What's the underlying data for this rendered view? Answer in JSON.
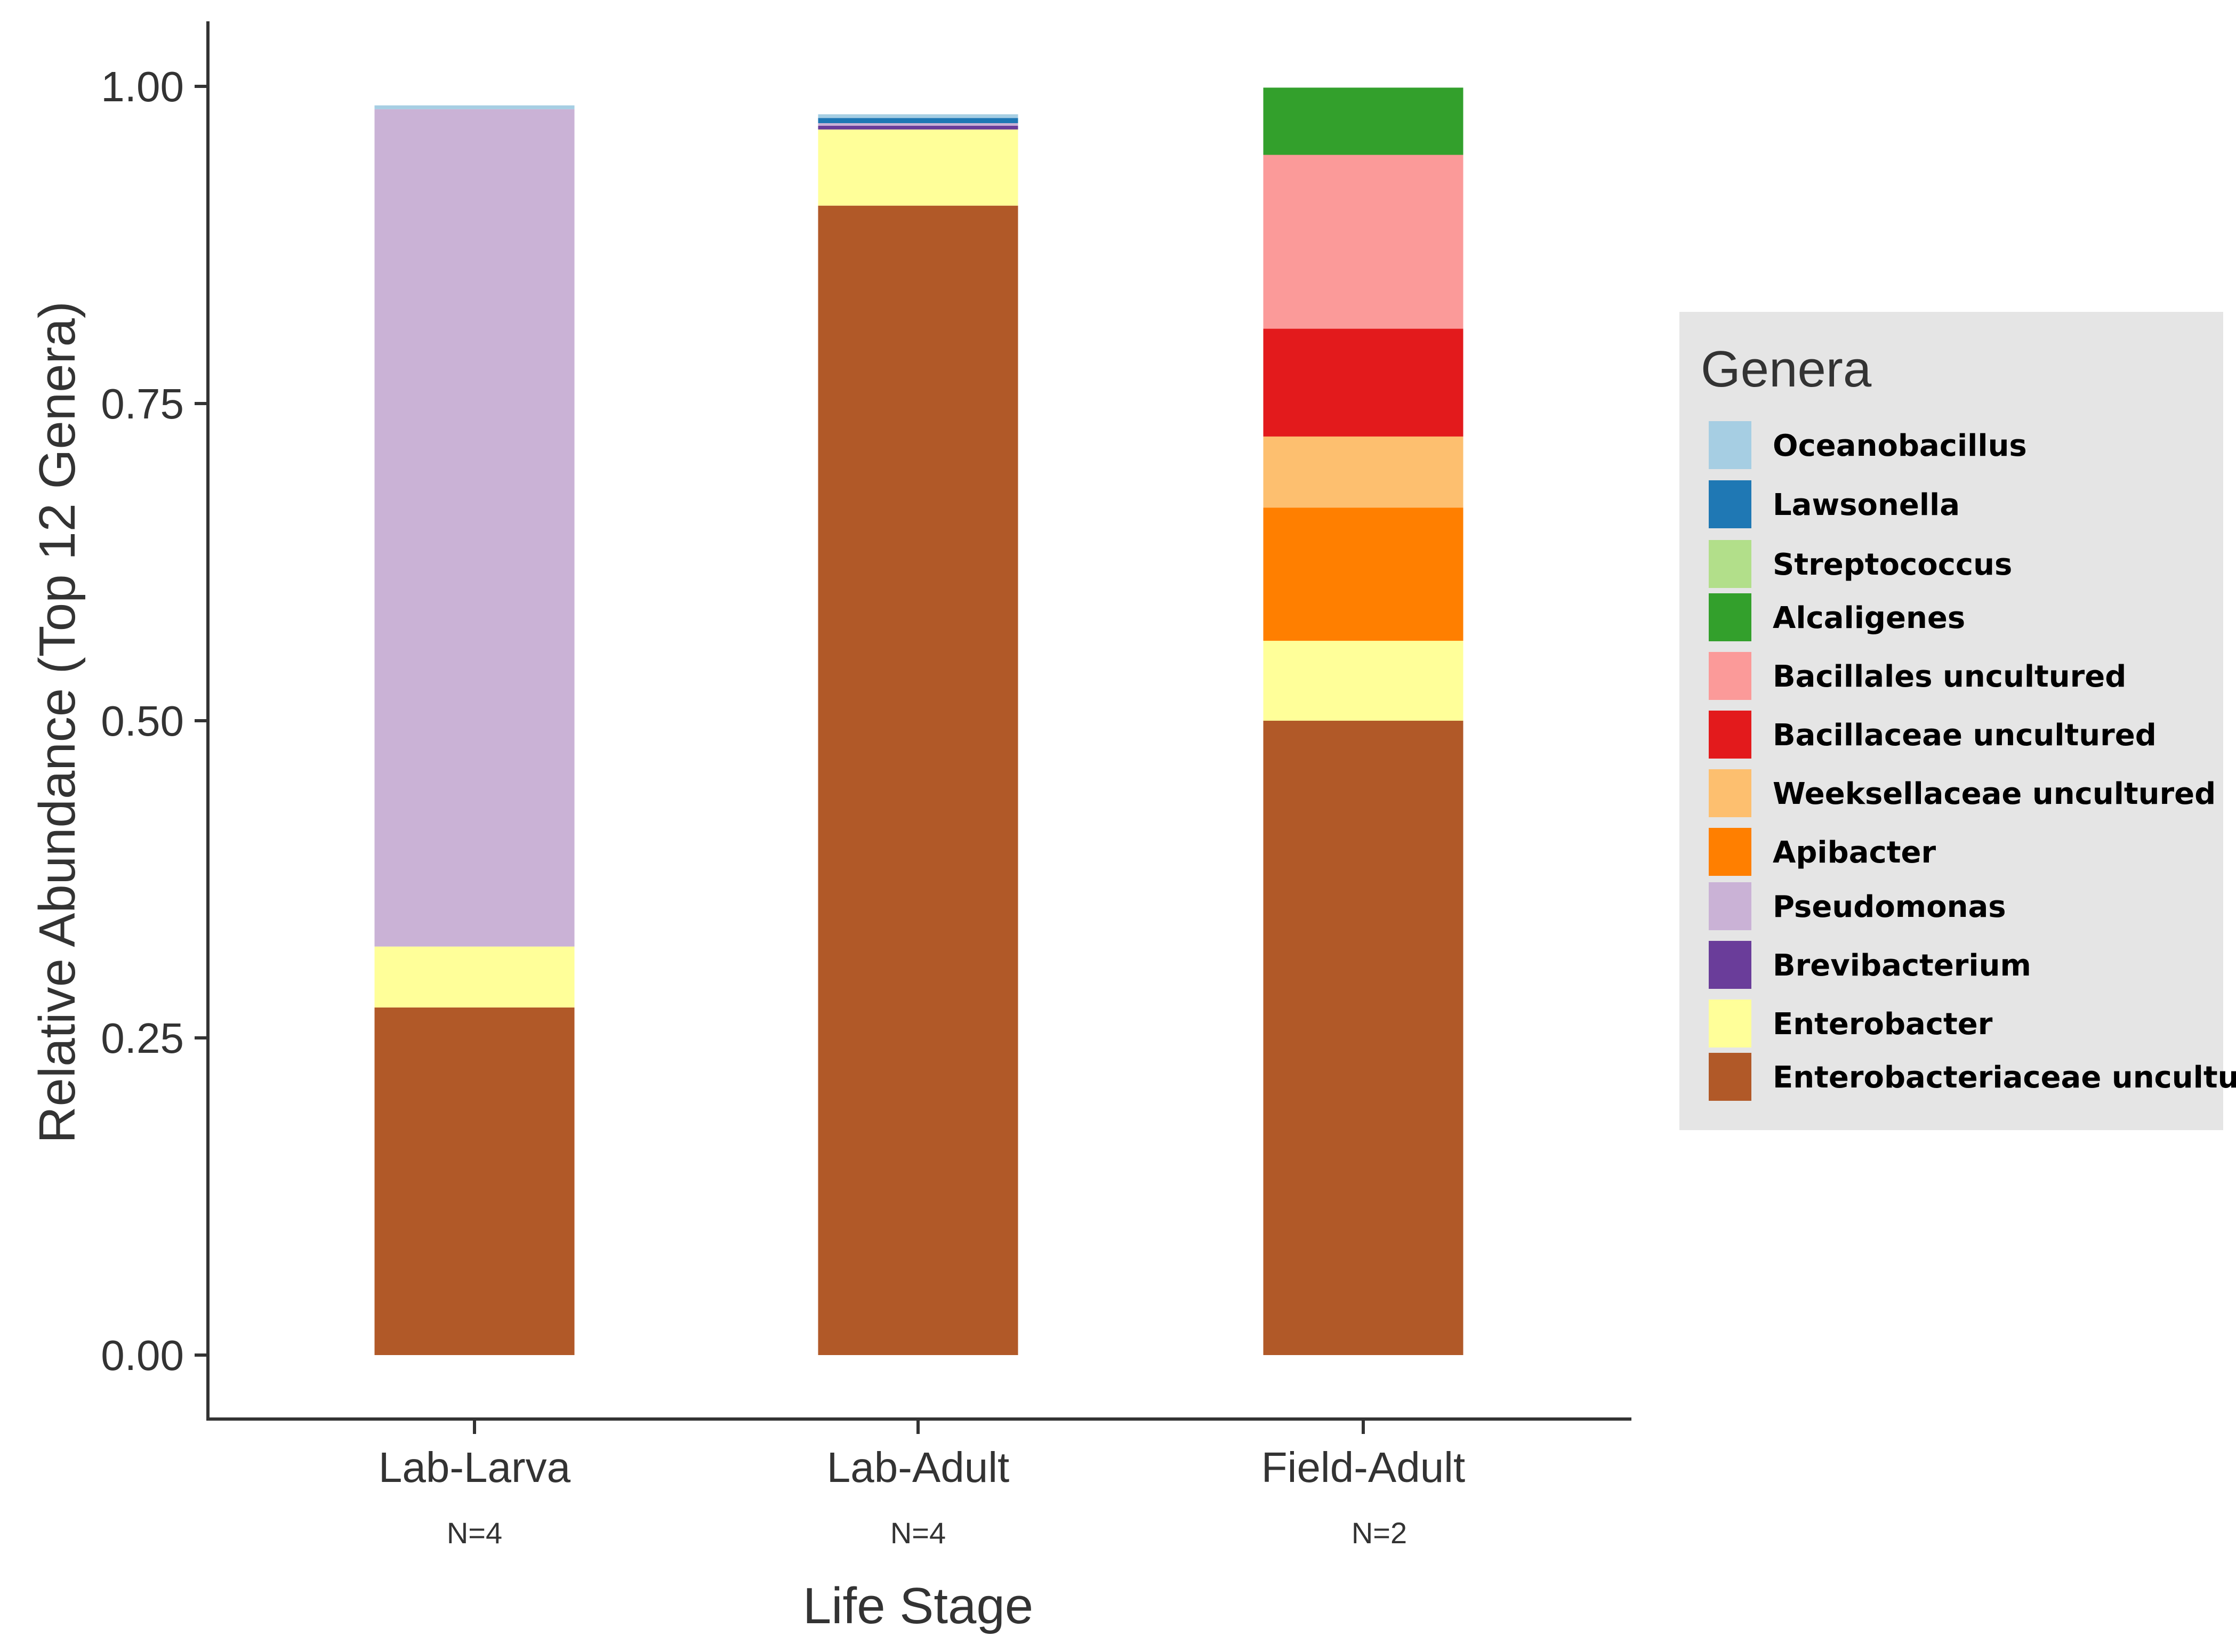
{
  "chart_data": {
    "type": "bar",
    "stacked": true,
    "title": "",
    "xlabel": "Life Stage",
    "ylabel": "Relative Abundance (Top 12 Genera)",
    "ylim": [
      0,
      1
    ],
    "yticks": [
      "0.00",
      "0.25",
      "0.50",
      "0.75",
      "1.00"
    ],
    "grid": false,
    "legend_position": "right",
    "legend_title": "Genera",
    "categories": [
      "Lab-Larva",
      "Lab-Adult",
      "Field-Adult"
    ],
    "sample_sizes": [
      "N=4",
      "N=4",
      "N=2"
    ],
    "series": [
      {
        "name": "Oceanobacillus",
        "color": "#a6cee3",
        "values": [
          0.003,
          0.003,
          0
        ]
      },
      {
        "name": "Lawsonella",
        "color": "#1f78b4",
        "values": [
          0,
          0.004,
          0
        ]
      },
      {
        "name": "Streptococcus",
        "color": "#b2df8a",
        "values": [
          0,
          0,
          0
        ]
      },
      {
        "name": "Alcaligenes",
        "color": "#33a02c",
        "values": [
          0,
          0,
          0.053
        ]
      },
      {
        "name": "Bacillales uncultured",
        "color": "#fb9a99",
        "values": [
          0,
          0,
          0.137
        ]
      },
      {
        "name": "Bacillaceae uncultured",
        "color": "#e31a1c",
        "values": [
          0,
          0,
          0.085
        ]
      },
      {
        "name": "Weeksellaceae uncultured",
        "color": "#fdbf6f",
        "values": [
          0,
          0,
          0.056
        ]
      },
      {
        "name": "Apibacter",
        "color": "#ff7f00",
        "values": [
          0,
          0,
          0.105
        ]
      },
      {
        "name": "Pseudomonas",
        "color": "#cab2d6",
        "values": [
          0.66,
          0.002,
          0
        ]
      },
      {
        "name": "Brevibacterium",
        "color": "#6a3d9a",
        "values": [
          0,
          0.003,
          0
        ]
      },
      {
        "name": "Enterobacter",
        "color": "#ffff99",
        "values": [
          0.048,
          0.06,
          0.063
        ]
      },
      {
        "name": "Enterobacteriaceae uncultured",
        "color": "#b15928",
        "values": [
          0.274,
          0.906,
          0.5
        ]
      }
    ]
  }
}
